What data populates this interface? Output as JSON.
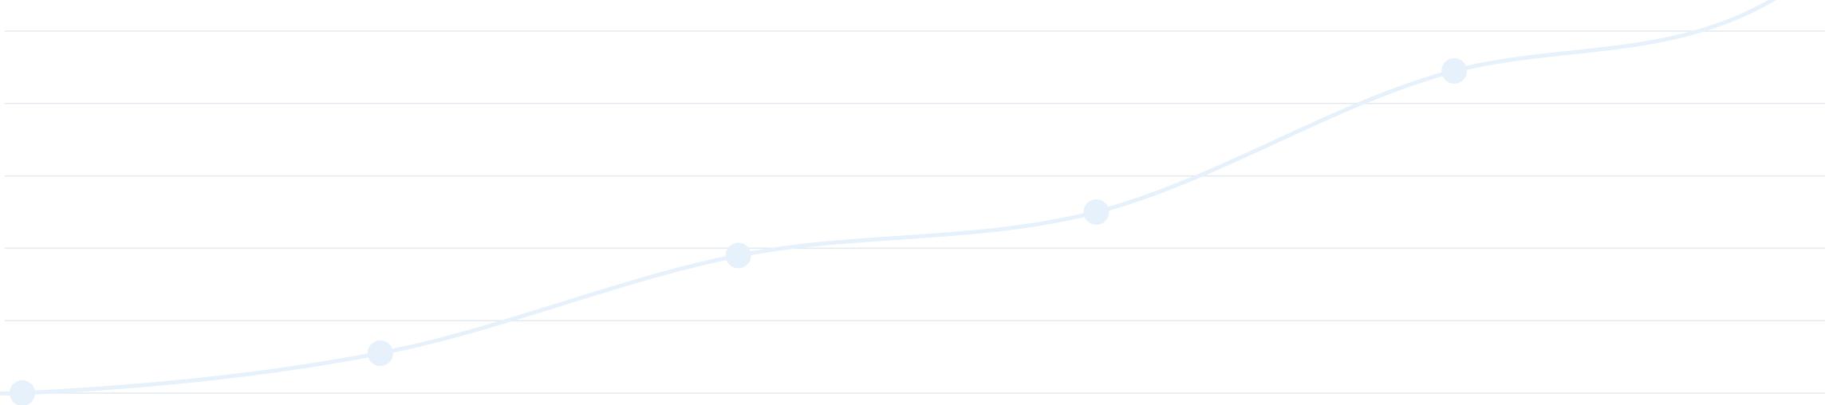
{
  "chart_data": {
    "type": "line",
    "title": "",
    "xlabel": "",
    "ylabel": "",
    "x": [
      0,
      1,
      2,
      3,
      4,
      5
    ],
    "series": [
      {
        "values": [
          0.0,
          0.55,
          1.9,
          2.5,
          4.45,
          5.8
        ],
        "color": "#e6f1fb",
        "smooth": true
      }
    ],
    "ylim": [
      0,
      5
    ],
    "gridlines": [
      0,
      1,
      2,
      3,
      4,
      5
    ],
    "grid": true,
    "axes_visible": false,
    "tick_labels_visible": false,
    "legend": "none",
    "grid_color": "#e3eaf0"
  }
}
